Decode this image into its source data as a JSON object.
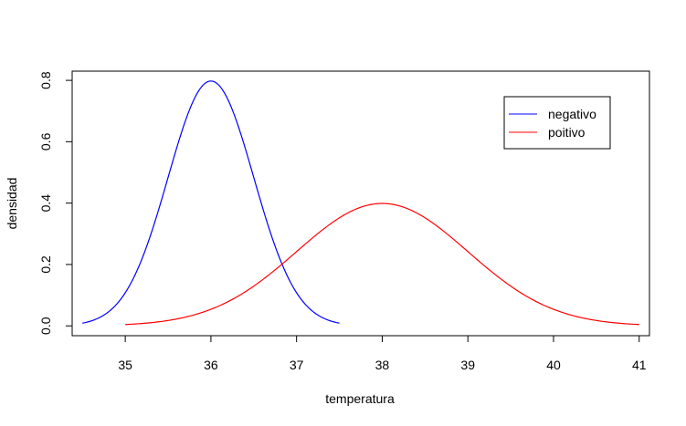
{
  "chart_data": {
    "type": "line",
    "title": "",
    "xlabel": "temperatura",
    "ylabel": "densidad",
    "xlim": [
      34.38,
      41.12
    ],
    "ylim": [
      -0.032,
      0.83
    ],
    "x_ticks": [
      "35",
      "36",
      "37",
      "38",
      "39",
      "40",
      "41"
    ],
    "y_ticks": [
      "0.0",
      "0.2",
      "0.4",
      "0.6",
      "0.8"
    ],
    "legend_position": "top-right",
    "grid": false,
    "series": [
      {
        "name": "negativo",
        "color": "#0000ff",
        "distribution": "normal",
        "mean": 36,
        "sd": 0.5,
        "x_range": [
          34.5,
          37.5
        ]
      },
      {
        "name": "poitivo",
        "color": "#ff0000",
        "distribution": "normal",
        "mean": 38,
        "sd": 1,
        "x_range": [
          35,
          41
        ]
      }
    ]
  }
}
